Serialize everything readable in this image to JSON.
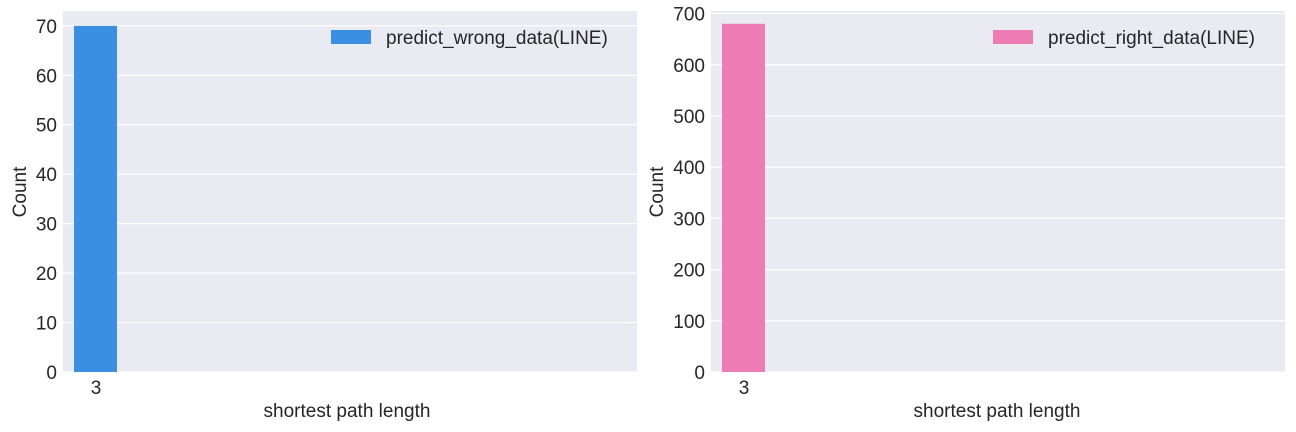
{
  "chart_data": [
    {
      "type": "bar",
      "categories": [
        "3"
      ],
      "series": [
        {
          "name": "predict_wrong_data(LINE)",
          "values": [
            70
          ],
          "color": "#3a8fe3"
        }
      ],
      "xlabel": "shortest path length",
      "ylabel": "Count",
      "ylim": [
        0,
        73
      ],
      "yticks": [
        0,
        10,
        20,
        30,
        40,
        50,
        60,
        70
      ],
      "grid": true,
      "legend": "top-right",
      "background": "#eaeaf2"
    },
    {
      "type": "bar",
      "categories": [
        "3"
      ],
      "series": [
        {
          "name": "predict_right_data(LINE)",
          "values": [
            680
          ],
          "color": "#ee7cb4"
        }
      ],
      "xlabel": "shortest path length",
      "ylabel": "Count",
      "ylim": [
        0,
        705
      ],
      "yticks": [
        0,
        100,
        200,
        300,
        400,
        500,
        600,
        700
      ],
      "grid": true,
      "legend": "top-right",
      "background": "#eaeaf2"
    }
  ]
}
